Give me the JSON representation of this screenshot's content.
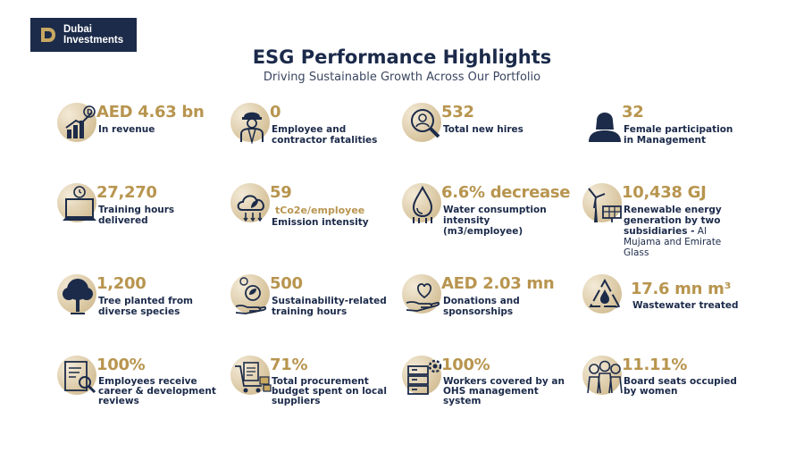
{
  "brand": {
    "logo_line1": "Dubai",
    "logo_line2": "Investments"
  },
  "header": {
    "title": "ESG Performance Highlights",
    "subtitle": "Driving Sustainable Growth Across Our Portfolio"
  },
  "colors": {
    "navy": "#1c2b49",
    "gold": "#b8954f",
    "beige": "#d9c6a0"
  },
  "metrics": [
    {
      "icon": "revenue-chart-icon",
      "value": "AED 4.63 bn",
      "label": "In revenue"
    },
    {
      "icon": "worker-helmet-icon",
      "value": "0",
      "label": "Employee and contractor fatalities"
    },
    {
      "icon": "new-hires-icon",
      "value": "532",
      "label": "Total new hires"
    },
    {
      "icon": "female-manager-icon",
      "value": "32",
      "label": "Female participation in Management"
    },
    {
      "icon": "training-laptop-icon",
      "value": "27,270",
      "label": "Training hours delivered"
    },
    {
      "icon": "emission-cloud-icon",
      "value": "59",
      "unit": "tCo2e/employee",
      "label": "Emission intensity"
    },
    {
      "icon": "water-drop-icon",
      "value": "6.6% decrease",
      "label": "Water consumption intensity (m3/employee)"
    },
    {
      "icon": "renewable-energy-icon",
      "value": "10,438 GJ",
      "label": "Renewable energy generation by two subsidiaries -",
      "label_light": " Al Mujama and Emirate Glass"
    },
    {
      "icon": "tree-icon",
      "value": "1,200",
      "label": "Tree planted from diverse species"
    },
    {
      "icon": "sustainability-training-icon",
      "value": "500",
      "label": "Sustainability-related training hours"
    },
    {
      "icon": "donation-heart-icon",
      "value": "AED 2.03 mn",
      "label": "Donations and sponsorships"
    },
    {
      "icon": "wastewater-recycle-icon",
      "value": "17.6 mn m³",
      "label": "Wastewater treated"
    },
    {
      "icon": "review-document-icon",
      "value": "100%",
      "label": "Employees receive career & development reviews"
    },
    {
      "icon": "procurement-cart-icon",
      "value": "71%",
      "label": "Total procurement budget spent on local suppliers"
    },
    {
      "icon": "ohs-system-icon",
      "value": "100%",
      "label": "Workers covered by an OHS management system"
    },
    {
      "icon": "board-women-icon",
      "value": "11.11%",
      "label": "Board seats occupied by women"
    }
  ]
}
